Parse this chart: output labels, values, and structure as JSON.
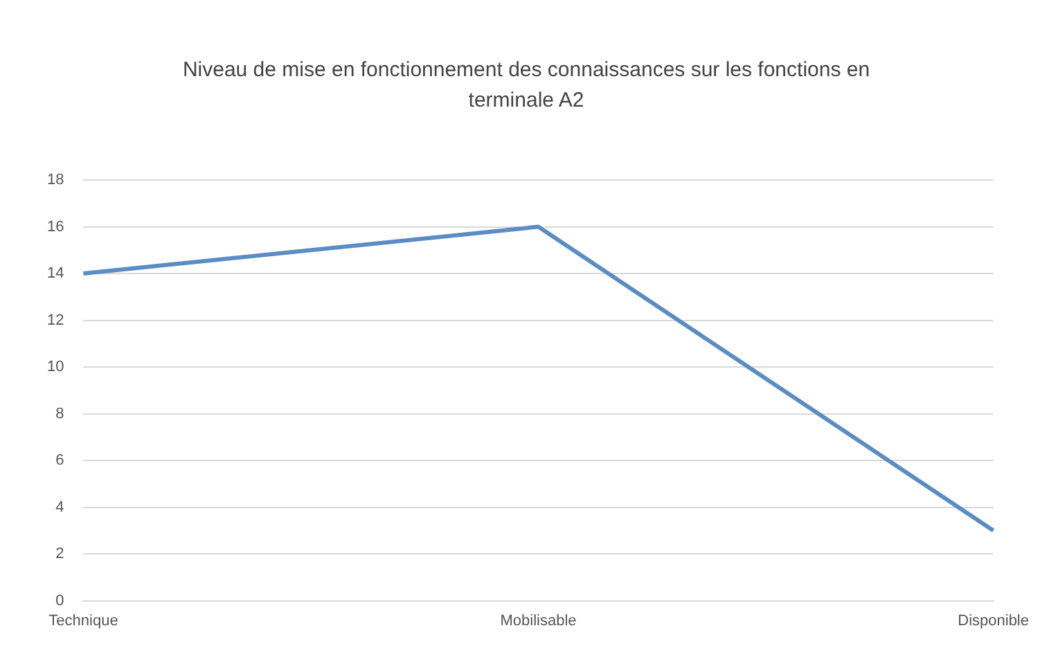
{
  "chart_data": {
    "type": "line",
    "title": "Niveau de mise en fonctionnement des connaissances sur les fonctions en terminale A2",
    "categories": [
      "Technique",
      "Mobilisable",
      "Disponible"
    ],
    "series": [
      {
        "color": "#5b8cc4",
        "values": [
          14,
          16,
          3
        ]
      }
    ],
    "ylim": [
      0,
      18
    ],
    "yticks": [
      0,
      2,
      4,
      6,
      8,
      10,
      12,
      14,
      16,
      18
    ],
    "grid": "y",
    "legend": false,
    "marker": "none",
    "line_style": "solid"
  }
}
